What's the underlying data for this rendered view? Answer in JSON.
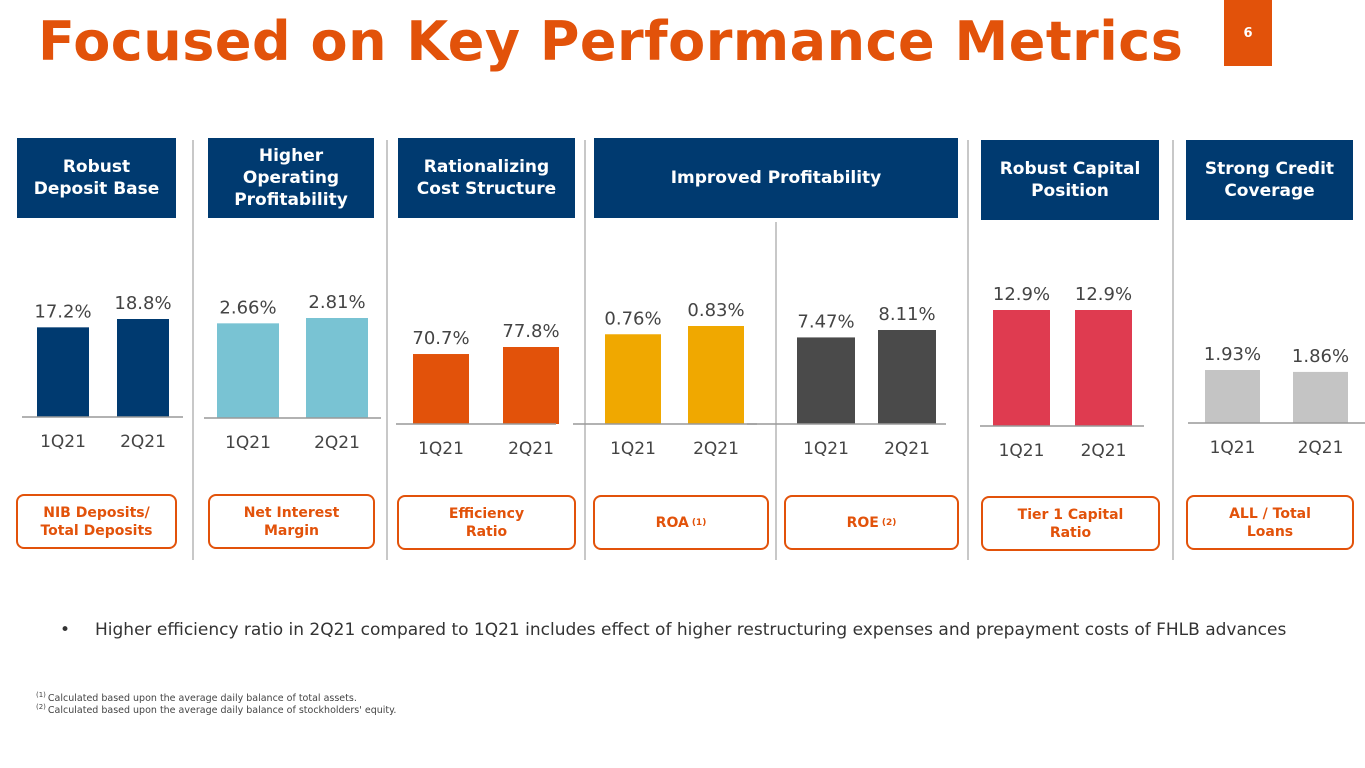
{
  "title": "Focused on Key Performance Metrics",
  "page_number": "6",
  "colors": {
    "accent": "#e2520a",
    "header_bg": "#003a70"
  },
  "sections": [
    {
      "header": "Robust Deposit Base"
    },
    {
      "header": "Higher Operating Profitability"
    },
    {
      "header": "Rationalizing Cost Structure"
    },
    {
      "header": "Improved Profitability"
    },
    {
      "header": "Robust Capital Position"
    },
    {
      "header": "Strong Credit Coverage"
    }
  ],
  "metrics": [
    {
      "label": "NIB Deposits/ Total Deposits",
      "sup": ""
    },
    {
      "label": "Net Interest Margin",
      "sup": ""
    },
    {
      "label": "Efficiency Ratio",
      "sup": ""
    },
    {
      "label": "ROA",
      "sup": "(1)"
    },
    {
      "label": "ROE",
      "sup": "(2)"
    },
    {
      "label": "Tier 1 Capital Ratio",
      "sup": ""
    },
    {
      "label": "ALL / Total Loans",
      "sup": ""
    }
  ],
  "chart_data": [
    {
      "type": "bar",
      "title": "NIB Deposits/ Total Deposits",
      "categories": [
        "1Q21",
        "2Q21"
      ],
      "values": [
        17.2,
        18.8
      ],
      "labels": [
        "17.2%",
        "18.8%"
      ],
      "color": "#003a70"
    },
    {
      "type": "bar",
      "title": "Net Interest Margin",
      "categories": [
        "1Q21",
        "2Q21"
      ],
      "values": [
        2.66,
        2.81
      ],
      "labels": [
        "2.66%",
        "2.81%"
      ],
      "color": "#79c3d3"
    },
    {
      "type": "bar",
      "title": "Efficiency Ratio",
      "categories": [
        "1Q21",
        "2Q21"
      ],
      "values": [
        70.7,
        77.8
      ],
      "labels": [
        "70.7%",
        "77.8%"
      ],
      "color": "#e2520a"
    },
    {
      "type": "bar",
      "title": "ROA",
      "categories": [
        "1Q21",
        "2Q21"
      ],
      "values": [
        0.76,
        0.83
      ],
      "labels": [
        "0.76%",
        "0.83%"
      ],
      "color": "#f0a800"
    },
    {
      "type": "bar",
      "title": "ROE",
      "categories": [
        "1Q21",
        "2Q21"
      ],
      "values": [
        7.47,
        8.11
      ],
      "labels": [
        "7.47%",
        "8.11%"
      ],
      "color": "#4a4a4a"
    },
    {
      "type": "bar",
      "title": "Tier 1 Capital Ratio",
      "categories": [
        "1Q21",
        "2Q21"
      ],
      "values": [
        12.9,
        12.9
      ],
      "labels": [
        "12.9%",
        "12.9%"
      ],
      "color": "#df3b50"
    },
    {
      "type": "bar",
      "title": "ALL / Total Loans",
      "categories": [
        "1Q21",
        "2Q21"
      ],
      "values": [
        1.93,
        1.86
      ],
      "labels": [
        "1.93%",
        "1.86%"
      ],
      "color": "#c4c4c4"
    }
  ],
  "bullet": "Higher efficiency ratio in 2Q21 compared to 1Q21 includes effect of higher restructuring expenses and prepayment costs of FHLB advances",
  "footnotes": [
    {
      "mark": "(1)",
      "text": "Calculated based upon the average daily balance of total assets."
    },
    {
      "mark": "(2)",
      "text": "Calculated based upon the average daily balance of stockholders' equity."
    }
  ]
}
